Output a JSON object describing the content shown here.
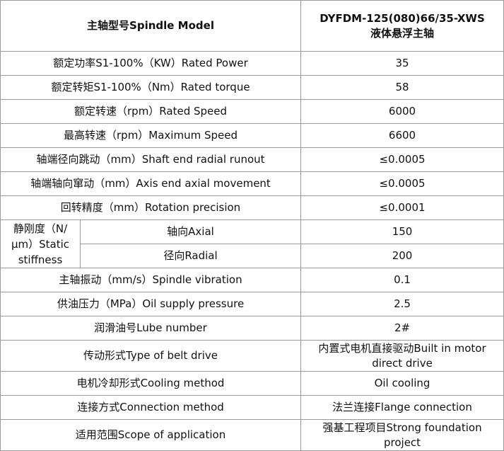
{
  "table": {
    "header": {
      "label": "主轴型号Spindle Model",
      "model": [
        "DYFDM-125(080)66/35-XWS",
        "液体悬浮主轴"
      ]
    },
    "rows": [
      [
        "额定功率S1-100%（KW）Rated Power",
        "35"
      ],
      [
        "额定转矩S1-100%（Nm）Rated torque",
        "58"
      ],
      [
        "额定转速（rpm）Rated Speed",
        "6000"
      ],
      [
        "最高转速（rpm）Maximum Speed",
        "6600"
      ],
      [
        "轴端径向跳动（mm）Shaft end radial runout",
        "≤0.0005"
      ],
      [
        "轴端轴向窜动（mm）Axis end axial movement",
        "≤0.0005"
      ],
      [
        "回转精度（mm）Rotation precision",
        "≤0.0001"
      ],
      {
        "label": "静刚度（N/μm）Static stiffness",
        "items": [
          [
            "轴向Axial",
            "150"
          ],
          [
            "径向Radial",
            "200"
          ]
        ]
      },
      [
        "主轴振动（mm/s）Spindle vibration",
        "0.1"
      ],
      [
        "供油压力（MPa）Oil supply pressure",
        "2.5"
      ],
      [
        "润滑油号Lube number",
        "2#"
      ],
      [
        "传动形式Type of belt drive",
        "内置式电机直接驱动Built in motor direct drive"
      ],
      [
        "电机冷却形式Cooling method",
        "Oil cooling"
      ],
      [
        "连接方式Connection method",
        "法兰连接Flange connection"
      ],
      [
        "适用范围Scope of application",
        "强基工程项目Strong foundation project"
      ]
    ]
  }
}
